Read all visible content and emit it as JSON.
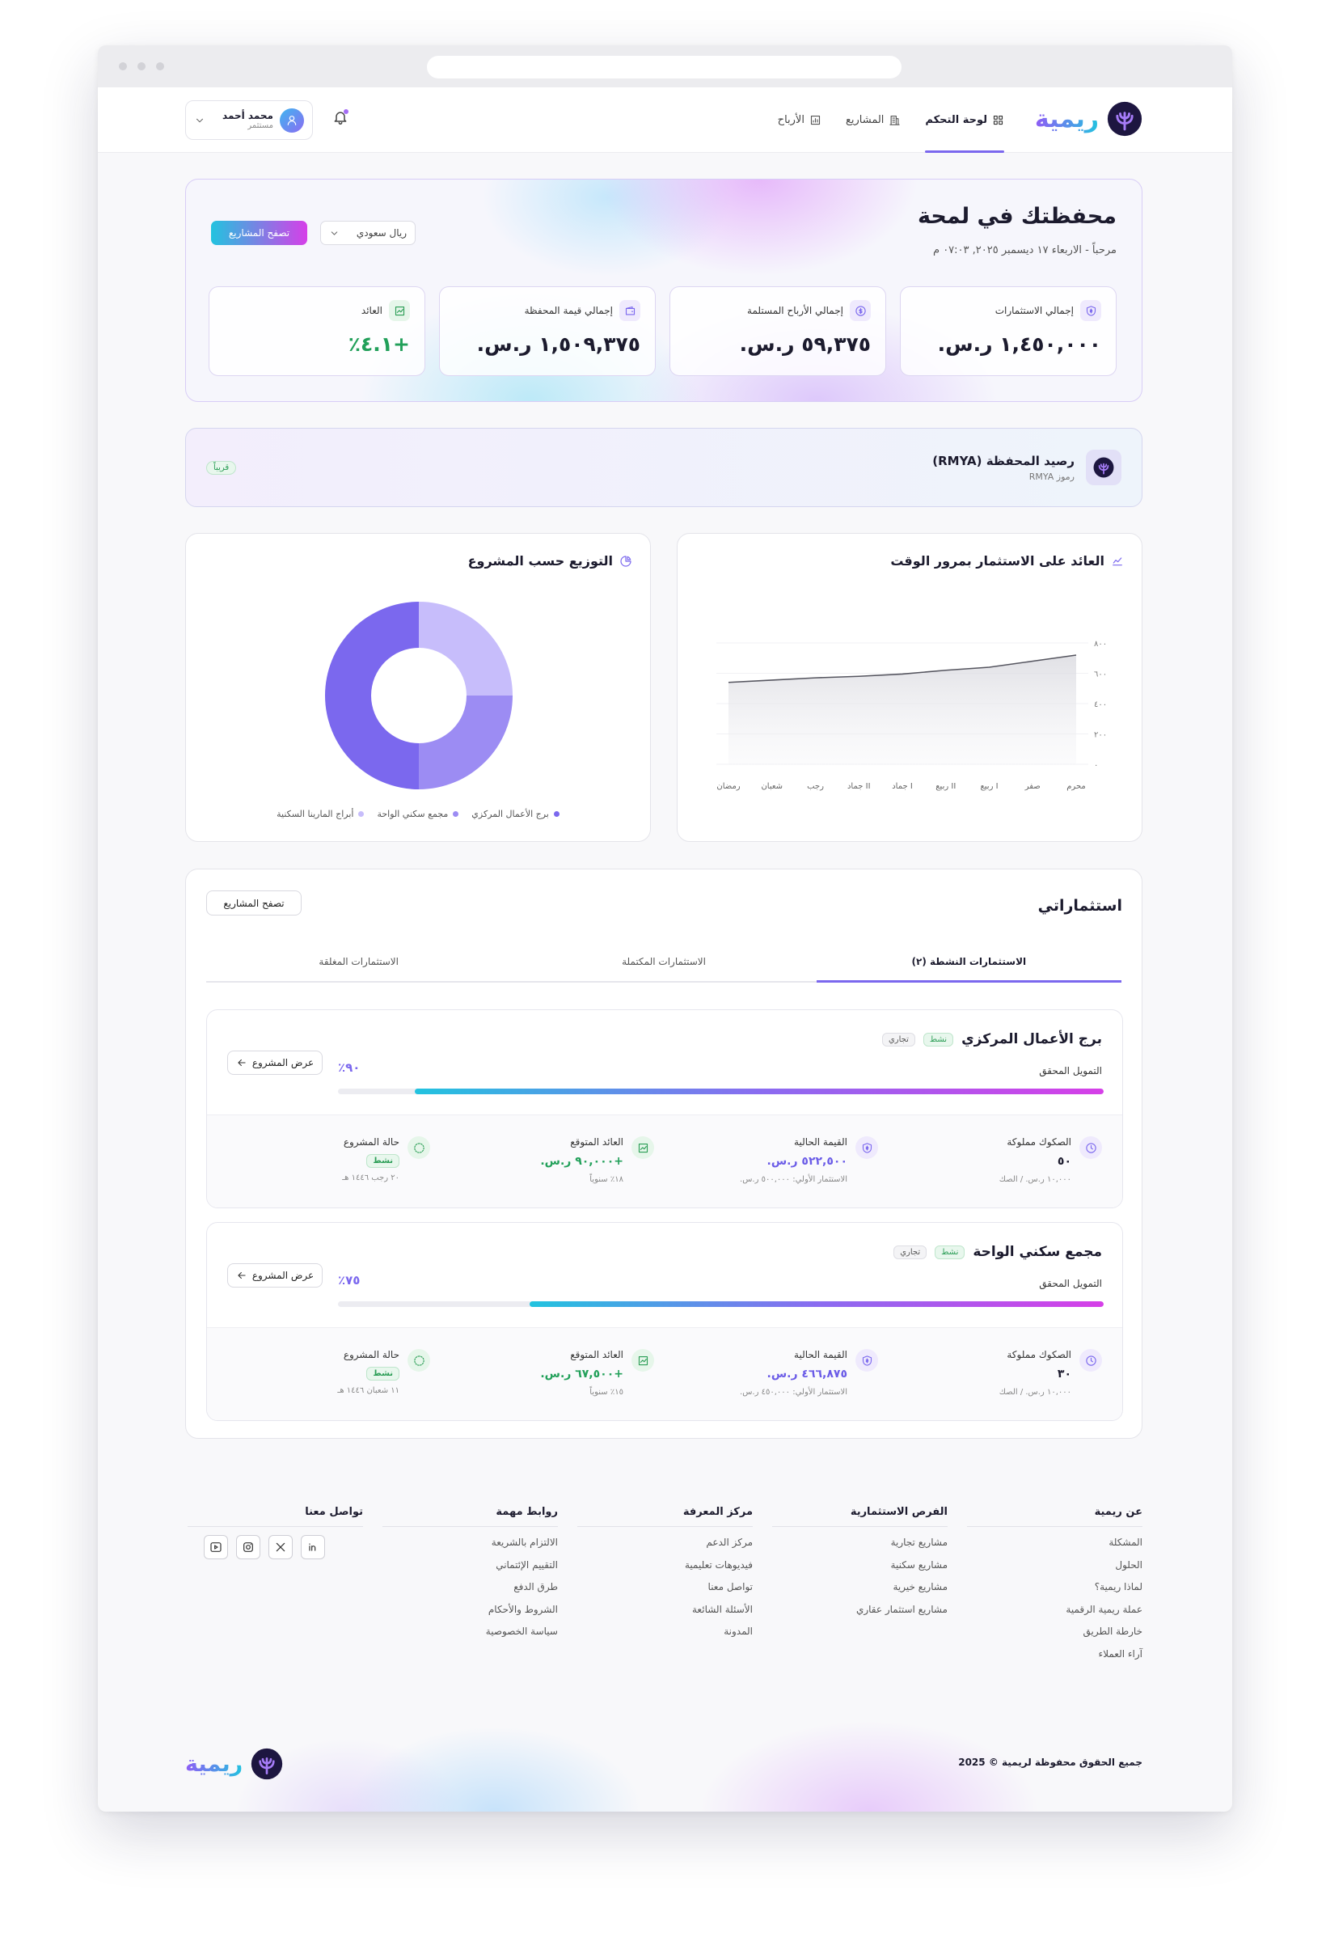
{
  "nav": {
    "logo": "ريمية",
    "links": [
      "لوحة التحكم",
      "المشاريع",
      "الأرباح"
    ],
    "user_name": "محمد أحمد",
    "user_role": "مستثمر"
  },
  "hero": {
    "title": "محفظتك في لمحة",
    "subtitle": "مرحباً - الاربعاء ١٧ ديسمبر ٢٠٢٥, ٠٧:٠٣ م",
    "currency": "ريال سعودي",
    "browse": "تصفح المشاريع",
    "stats": [
      {
        "label": "إجمالي الاستثمارات",
        "value": "١,٤٥٠,٠٠٠ ر.س."
      },
      {
        "label": "إجمالي الأرباح المستلمة",
        "value": "٥٩,٣٧٥ ر.س."
      },
      {
        "label": "إجمالي قيمة المحفظة",
        "value": "١,٥٠٩,٣٧٥ ر.س."
      },
      {
        "label": "العائد",
        "value": "+٤.١٪"
      }
    ]
  },
  "token": {
    "title": "رصيد المحفظة (RMYA)",
    "subtitle": "رموز RMYA",
    "badge": "قريباً"
  },
  "chart_data": [
    {
      "type": "line",
      "title": "العائد على الاستثمار بمرور الوقت",
      "categories": [
        "محرم",
        "صفر",
        "ربيع I",
        "ربيع II",
        "جماد I",
        "جماد II",
        "رجب",
        "شعبان",
        "رمضان"
      ],
      "values": [
        720,
        680,
        640,
        620,
        595,
        580,
        570,
        555,
        540
      ],
      "color": "#55555f",
      "ylim": [
        0,
        800
      ],
      "yticks": [
        {
          "value": 0,
          "label": "٠"
        },
        {
          "value": 200,
          "label": "٢٠٠"
        },
        {
          "value": 400,
          "label": "٤٠٠"
        },
        {
          "value": 600,
          "label": "٦٠٠"
        },
        {
          "value": 800,
          "label": "٨٠٠"
        }
      ]
    },
    {
      "type": "pie",
      "title": "التوزيع حسب المشروع",
      "categories": [
        "برج الأعمال المركزي",
        "مجمع سكني الواحة",
        "أبراج المارينا السكنية"
      ],
      "values": [
        50,
        25,
        25
      ],
      "colors": [
        "#7b68ee",
        "#9c8cf3",
        "#c7bdfb"
      ]
    }
  ],
  "investments": {
    "title": "استثماراتي",
    "browse": "تصفح المشاريع",
    "tabs": [
      "الاستثمارات النشطة (٢)",
      "الاستثمارات المكتملة",
      "الاستثمارات المغلقة"
    ],
    "projects": [
      {
        "name": "برج الأعمال المركزي",
        "status": "نشط",
        "kind": "تجاري",
        "view": "عرض المشروع",
        "funding_title": "التمويل المحقق",
        "funding_percent": 90,
        "funding_percent_label": "٩٠٪",
        "details": [
          {
            "label": "الصكوك مملوكة",
            "value": "٥٠",
            "note": "١٠,٠٠٠ ر.س. / الصك"
          },
          {
            "label": "القيمة الحالية",
            "value": "٥٢٢,٥٠٠ ر.س.",
            "note": "الاستثمار الأولي: ٥٠٠,٠٠٠ ر.س."
          },
          {
            "label": "العائد المتوقع",
            "value": "+٩٠,٠٠٠ ر.س.",
            "note": "١٨٪ سنوياً"
          },
          {
            "label": "حالة المشروع",
            "value": "نشط",
            "note": "٢٠ رجب ١٤٤٦ هـ"
          }
        ]
      },
      {
        "name": "مجمع سكني الواحة",
        "status": "نشط",
        "kind": "تجاري",
        "view": "عرض المشروع",
        "funding_title": "التمويل المحقق",
        "funding_percent": 75,
        "funding_percent_label": "٧٥٪",
        "details": [
          {
            "label": "الصكوك مملوكة",
            "value": "٣٠",
            "note": "١٠,٠٠٠ ر.س. / الصك"
          },
          {
            "label": "القيمة الحالية",
            "value": "٤٦٦,٨٧٥ ر.س.",
            "note": "الاستثمار الأولي: ٤٥٠,٠٠٠ ر.س."
          },
          {
            "label": "العائد المتوقع",
            "value": "+٦٧,٥٠٠ ر.س.",
            "note": "١٥٪ سنوياً"
          },
          {
            "label": "حالة المشروع",
            "value": "نشط",
            "note": "١١ شعبان ١٤٤٦ هـ"
          }
        ]
      }
    ]
  },
  "footer": {
    "columns": [
      {
        "title": "عن ريمية",
        "links": [
          "المشكلة",
          "الحلول",
          "لماذا ريمية؟",
          "عملة ريمية الرقمية",
          "خارطة الطريق",
          "آراء العملاء"
        ]
      },
      {
        "title": "الفرص الاستثمارية",
        "links": [
          "مشاريع تجارية",
          "مشاريع سكنية",
          "مشاريع خيرية",
          "مشاريع استثمار عقاري"
        ]
      },
      {
        "title": "مركز المعرفة",
        "links": [
          "مركز الدعم",
          "فيديوهات تعليمية",
          "تواصل معنا",
          "الأسئلة الشائعة",
          "المدونة"
        ]
      },
      {
        "title": "روابط مهمة",
        "links": [
          "الالتزام بالشريعة",
          "التقييم الإئتماني",
          "طرق الدفع",
          "الشروط والأحكام",
          "سياسة الخصوصية"
        ]
      }
    ],
    "contact_title": "تواصل معنا",
    "copyright": "جميع الحقوق محفوظة لريمية © 2025",
    "logo": "ريمية"
  }
}
